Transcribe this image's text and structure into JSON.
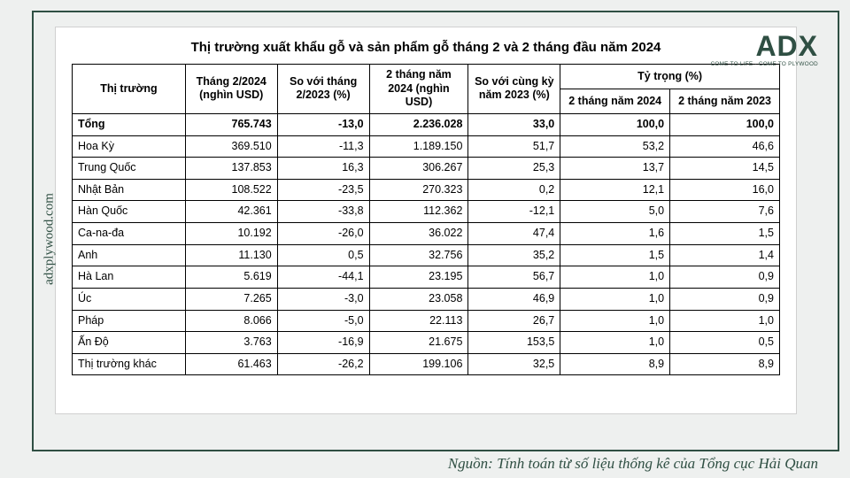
{
  "title": "Thị trường xuất khẩu gỗ và sản phẩm gỗ tháng 2 và 2 tháng đầu năm 2024",
  "logo": {
    "main": "ADX",
    "sub": "COME TO LIFE · COME TO PLYWOOD"
  },
  "site": "adxplywood.com",
  "source": "Nguồn: Tính toán từ số liệu thống kê của Tổng cục Hải Quan",
  "columns": {
    "market": "Thị trường",
    "feb2024": "Tháng 2/2024 (nghìn USD)",
    "vs_feb2023": "So với tháng 2/2023 (%)",
    "ytd2024": "2 tháng năm 2024 (nghìn USD)",
    "vs_ytd2023": "So với cùng kỳ năm 2023 (%)",
    "share_group": "Tỷ trọng (%)",
    "share2024": "2 tháng năm 2024",
    "share2023": "2 tháng năm 2023"
  },
  "rows": [
    {
      "market": "Tổng",
      "feb2024": "765.743",
      "vs_feb2023": "-13,0",
      "ytd2024": "2.236.028",
      "vs_ytd2023": "33,0",
      "share2024": "100,0",
      "share2023": "100,0",
      "total": true
    },
    {
      "market": "Hoa Kỳ",
      "feb2024": "369.510",
      "vs_feb2023": "-11,3",
      "ytd2024": "1.189.150",
      "vs_ytd2023": "51,7",
      "share2024": "53,2",
      "share2023": "46,6"
    },
    {
      "market": "Trung Quốc",
      "feb2024": "137.853",
      "vs_feb2023": "16,3",
      "ytd2024": "306.267",
      "vs_ytd2023": "25,3",
      "share2024": "13,7",
      "share2023": "14,5"
    },
    {
      "market": "Nhật Bản",
      "feb2024": "108.522",
      "vs_feb2023": "-23,5",
      "ytd2024": "270.323",
      "vs_ytd2023": "0,2",
      "share2024": "12,1",
      "share2023": "16,0"
    },
    {
      "market": "Hàn Quốc",
      "feb2024": "42.361",
      "vs_feb2023": "-33,8",
      "ytd2024": "112.362",
      "vs_ytd2023": "-12,1",
      "share2024": "5,0",
      "share2023": "7,6"
    },
    {
      "market": "Ca-na-đa",
      "feb2024": "10.192",
      "vs_feb2023": "-26,0",
      "ytd2024": "36.022",
      "vs_ytd2023": "47,4",
      "share2024": "1,6",
      "share2023": "1,5"
    },
    {
      "market": "Anh",
      "feb2024": "11.130",
      "vs_feb2023": "0,5",
      "ytd2024": "32.756",
      "vs_ytd2023": "35,2",
      "share2024": "1,5",
      "share2023": "1,4"
    },
    {
      "market": "Hà Lan",
      "feb2024": "5.619",
      "vs_feb2023": "-44,1",
      "ytd2024": "23.195",
      "vs_ytd2023": "56,7",
      "share2024": "1,0",
      "share2023": "0,9"
    },
    {
      "market": "Úc",
      "feb2024": "7.265",
      "vs_feb2023": "-3,0",
      "ytd2024": "23.058",
      "vs_ytd2023": "46,9",
      "share2024": "1,0",
      "share2023": "0,9"
    },
    {
      "market": "Pháp",
      "feb2024": "8.066",
      "vs_feb2023": "-5,0",
      "ytd2024": "22.113",
      "vs_ytd2023": "26,7",
      "share2024": "1,0",
      "share2023": "1,0"
    },
    {
      "market": "Ấn Độ",
      "feb2024": "3.763",
      "vs_feb2023": "-16,9",
      "ytd2024": "21.675",
      "vs_ytd2023": "153,5",
      "share2024": "1,0",
      "share2023": "0,5"
    },
    {
      "market": "Thị trường khác",
      "feb2024": "61.463",
      "vs_feb2023": "-26,2",
      "ytd2024": "199.106",
      "vs_ytd2023": "32,5",
      "share2024": "8,9",
      "share2023": "8,9"
    }
  ],
  "col_widths_pct": [
    16,
    13,
    13,
    14,
    13,
    15.5,
    15.5
  ],
  "colors": {
    "accent": "#2f4f43",
    "frame_bg": "#eef0ef",
    "panel_bg": "#ffffff",
    "border": "#000000"
  }
}
